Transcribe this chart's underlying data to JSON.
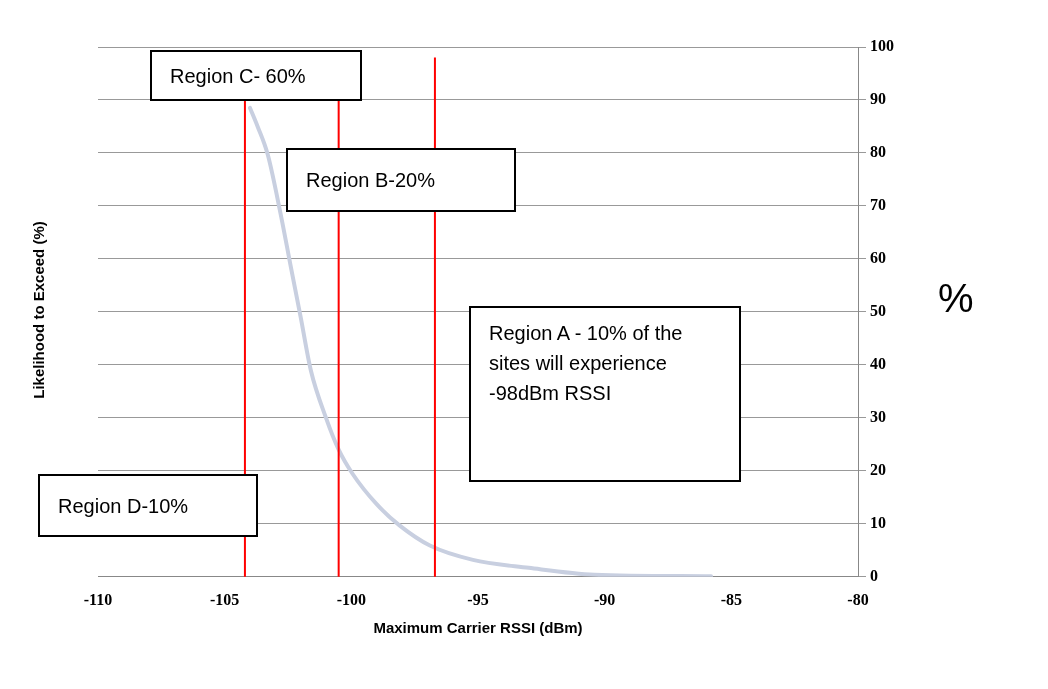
{
  "chart_data": {
    "type": "line",
    "xlabel": "Maximum Carrier RSSI (dBm)",
    "ylabel": "Likelihood to Exceed (%)",
    "x": [
      -104.0,
      -103.7,
      -103.3,
      -102.8,
      -102.4,
      -102.0,
      -101.6,
      -101.0,
      -100.5,
      -99.96,
      -99.0,
      -98.1,
      -96.9,
      -95.2,
      -93.0,
      -90.4,
      -85.8
    ],
    "series": [
      {
        "color": "#c8cfe0",
        "values": [
          88.5,
          85,
          79.7,
          68.7,
          58.8,
          49,
          39,
          30,
          24,
          19.5,
          13.7,
          9.7,
          5.9,
          3.2,
          1.7,
          0.4,
          0.1
        ]
      }
    ],
    "xlim": [
      -110,
      -80
    ],
    "xticks": [
      -110,
      -105,
      -100,
      -95,
      -90,
      -85,
      -80
    ],
    "ylim": [
      0,
      100
    ],
    "yticks": [
      0,
      10,
      20,
      30,
      40,
      50,
      60,
      70,
      80,
      90,
      100
    ],
    "grid": "y",
    "marker": "none",
    "line_style": "solid",
    "legend": false,
    "ref_lines": [
      {
        "axis": "x",
        "value": -104.2,
        "color": "#ff0000"
      },
      {
        "axis": "x",
        "value": -100.5,
        "color": "#ff0000"
      },
      {
        "axis": "x",
        "value": -96.7,
        "color": "#ff0000"
      }
    ],
    "annotations": [
      "Region C- 60%",
      "Region B-20%",
      "Region A - 10% of the sites will experience -98dBm RSSI",
      "Region D-10%",
      "%"
    ]
  }
}
